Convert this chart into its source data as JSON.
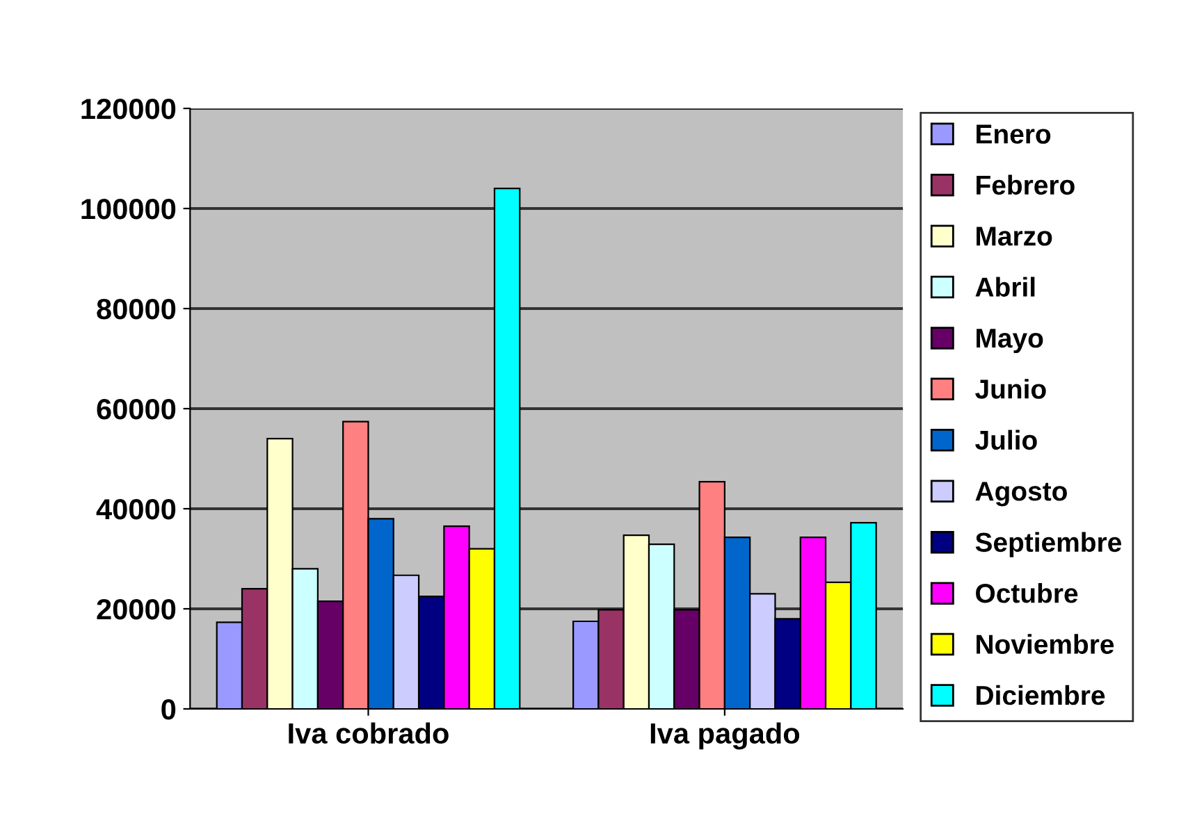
{
  "chart_data": {
    "type": "bar",
    "categories": [
      "Iva cobrado",
      "Iva pagado"
    ],
    "series": [
      {
        "name": "Enero",
        "color": "#9999ff",
        "values": [
          17300,
          17500
        ]
      },
      {
        "name": "Febrero",
        "color": "#993366",
        "values": [
          24000,
          19800
        ]
      },
      {
        "name": "Marzo",
        "color": "#ffffcc",
        "values": [
          54000,
          34700
        ]
      },
      {
        "name": "Abril",
        "color": "#ccffff",
        "values": [
          28000,
          32900
        ]
      },
      {
        "name": "Mayo",
        "color": "#660066",
        "values": [
          21500,
          19800
        ]
      },
      {
        "name": "Junio",
        "color": "#ff8080",
        "values": [
          57400,
          45400
        ]
      },
      {
        "name": "Julio",
        "color": "#0066cc",
        "values": [
          38000,
          34300
        ]
      },
      {
        "name": "Agosto",
        "color": "#ccccff",
        "values": [
          26700,
          23000
        ]
      },
      {
        "name": "Septiembre",
        "color": "#000080",
        "values": [
          22500,
          18000
        ]
      },
      {
        "name": "Octubre",
        "color": "#ff00ff",
        "values": [
          36500,
          34300
        ]
      },
      {
        "name": "Noviembre",
        "color": "#ffff00",
        "values": [
          32000,
          25300
        ]
      },
      {
        "name": "Diciembre",
        "color": "#00ffff",
        "values": [
          104000,
          37200
        ]
      }
    ],
    "ylim": [
      0,
      120000
    ],
    "yticks": [
      0,
      20000,
      40000,
      60000,
      80000,
      100000,
      120000
    ],
    "grid": "y",
    "legend": "right"
  }
}
